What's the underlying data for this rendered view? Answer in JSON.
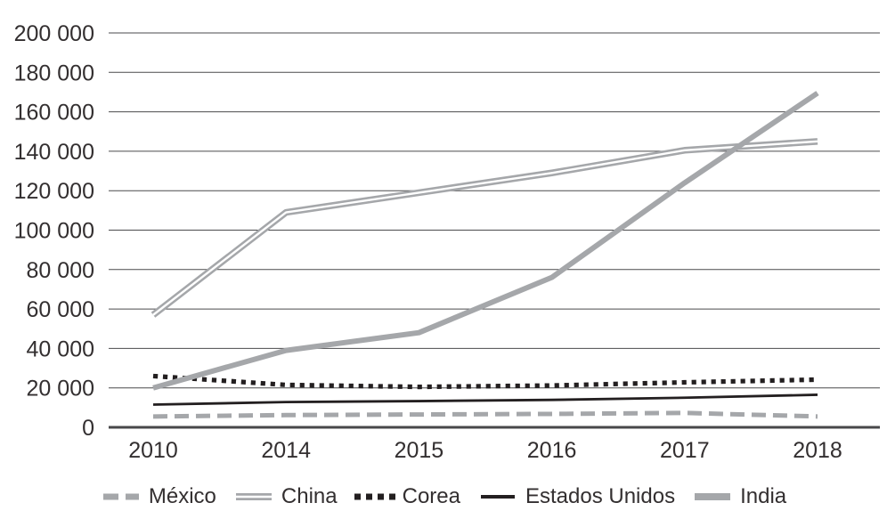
{
  "figure": {
    "background": "#ffffff"
  },
  "colors": {
    "gray_line": "#a5a7aa",
    "black_line": "#231f20",
    "gridline": "#4a4a4c",
    "zero_axis": "#48484a",
    "text": "#332f30",
    "double_line_gap": "#ffffff"
  },
  "chart_data": {
    "type": "line",
    "title": "",
    "x_categories": [
      "2010",
      "2014",
      "2015",
      "2016",
      "2017",
      "2018"
    ],
    "ylim": [
      0,
      200000
    ],
    "ytick_values": [
      0,
      20000,
      40000,
      60000,
      80000,
      100000,
      120000,
      140000,
      160000,
      180000,
      200000
    ],
    "ytick_labels": [
      "0",
      "20 000",
      "40 000",
      "60 000",
      "80 000",
      "100 000",
      "120 000",
      "140 000",
      "160 000",
      "180 000",
      "200 000"
    ],
    "grid": true,
    "legend_position": "bottom",
    "series": [
      {
        "name": "México",
        "style": "dashed",
        "color": "#a5a7aa",
        "values": [
          5500,
          6200,
          6500,
          6800,
          7300,
          5500
        ]
      },
      {
        "name": "China",
        "style": "double",
        "color": "#a5a7aa",
        "values": [
          57000,
          109000,
          119000,
          129000,
          140500,
          145000
        ]
      },
      {
        "name": "Corea",
        "style": "dotted",
        "color": "#231f20",
        "values": [
          26000,
          21500,
          20500,
          21200,
          22800,
          24200
        ]
      },
      {
        "name": "Estados Unidos",
        "style": "solid-thin",
        "color": "#231f20",
        "values": [
          11500,
          12800,
          13300,
          13900,
          15000,
          16500
        ]
      },
      {
        "name": "India",
        "style": "solid-thick",
        "color": "#a5a7aa",
        "values": [
          20000,
          39000,
          48000,
          76000,
          124000,
          169500
        ]
      }
    ]
  }
}
